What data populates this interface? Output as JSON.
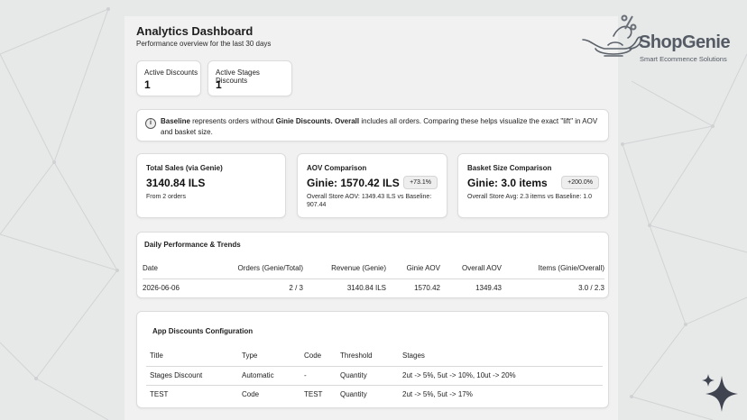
{
  "header": {
    "title": "Analytics Dashboard",
    "subtitle": "Performance overview for the last 30 days"
  },
  "brand": {
    "name": "ShopGenie",
    "tagline": "Smart Ecommence Solutions",
    "color": "#555b64"
  },
  "stats": [
    {
      "label": "Active Discounts",
      "value": "1"
    },
    {
      "label": "Active Stages Discounts",
      "value": "1"
    }
  ],
  "info": {
    "icon": "info-icon",
    "bold1": "Baseline",
    "text1": " represents orders without ",
    "bold2": "Ginie Discounts.",
    "text2": " ",
    "bold3": "Overall",
    "text3": " includes all orders. Comparing these helps visualize the exact \"lift\" in AOV and basket size."
  },
  "metrics": {
    "total_sales": {
      "title": "Total Sales (via Genie)",
      "value": "3140.84 ILS",
      "sub": "From 2 orders"
    },
    "aov": {
      "title": "AOV Comparison",
      "value": "Ginie: 1570.42 ILS",
      "badge": "+73.1%",
      "sub": "Overall Store AOV: 1349.43 ILS vs Baseline: 907.44"
    },
    "basket": {
      "title": "Basket Size Comparison",
      "value": "Ginie: 3.0 items",
      "badge": "+200.0%",
      "sub": "Overall Store Avg: 2.3 items vs Baseline: 1.0"
    }
  },
  "daily": {
    "title": "Daily Performance & Trends",
    "columns": [
      "Date",
      "Orders (Genie/Total)",
      "Revenue (Genie)",
      "Ginie AOV",
      "Overall AOV",
      "Items (Ginie/Overall)"
    ],
    "rows": [
      [
        "2026-06-06",
        "2 / 3",
        "3140.84 ILS",
        "1570.42",
        "1349.43",
        "3.0 / 2.3"
      ]
    ]
  },
  "config": {
    "title": "App Discounts Configuration",
    "columns": [
      "Title",
      "Type",
      "Code",
      "Threshold",
      "Stages"
    ],
    "rows": [
      [
        "Stages Discount",
        "Automatic",
        "-",
        "Quantity",
        "2ut -> 5%, 5ut -> 10%, 10ut -> 20%"
      ],
      [
        "TEST",
        "Code",
        "TEST",
        "Quantity",
        "2ut -> 5%, 5ut -> 17%"
      ]
    ]
  }
}
